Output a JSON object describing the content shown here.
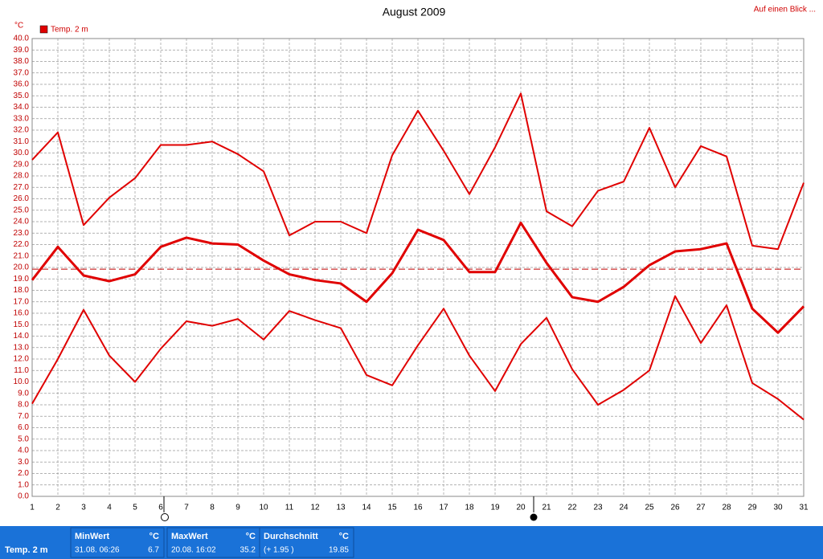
{
  "chart_data": {
    "type": "line",
    "title": "August 2009",
    "link": "Auf einen Blick ...",
    "legend": "Temp. 2 m",
    "y_unit": "°C",
    "x": [
      1,
      2,
      3,
      4,
      5,
      6,
      7,
      8,
      9,
      10,
      11,
      12,
      13,
      14,
      15,
      16,
      17,
      18,
      19,
      20,
      21,
      22,
      23,
      24,
      25,
      26,
      27,
      28,
      29,
      30,
      31
    ],
    "xlim": [
      1,
      31
    ],
    "xticks": [
      1,
      2,
      3,
      4,
      5,
      6,
      7,
      8,
      9,
      10,
      11,
      12,
      13,
      14,
      15,
      16,
      17,
      18,
      19,
      20,
      21,
      22,
      23,
      24,
      25,
      26,
      27,
      28,
      29,
      30,
      31
    ],
    "ylim": [
      0,
      40
    ],
    "yticks": [
      {
        "value": 0,
        "label": "0.0"
      },
      {
        "value": 1,
        "label": "1.0"
      },
      {
        "value": 2,
        "label": "2.0"
      },
      {
        "value": 3,
        "label": "3.0"
      },
      {
        "value": 4,
        "label": "4.0"
      },
      {
        "value": 5,
        "label": "5.0"
      },
      {
        "value": 6,
        "label": "6.0"
      },
      {
        "value": 7,
        "label": "7.0"
      },
      {
        "value": 8,
        "label": "8.0"
      },
      {
        "value": 9,
        "label": "9.0"
      },
      {
        "value": 10,
        "label": "10.0"
      },
      {
        "value": 11,
        "label": "11.0"
      },
      {
        "value": 12,
        "label": "12.0"
      },
      {
        "value": 13,
        "label": "13.0"
      },
      {
        "value": 14,
        "label": "14.0"
      },
      {
        "value": 15,
        "label": "15.0"
      },
      {
        "value": 16,
        "label": "16.0"
      },
      {
        "value": 17,
        "label": "17.0"
      },
      {
        "value": 18,
        "label": "18.0"
      },
      {
        "value": 19,
        "label": "19.0"
      },
      {
        "value": 20,
        "label": "20.0"
      },
      {
        "value": 21,
        "label": "21.0"
      },
      {
        "value": 22,
        "label": "22.0"
      },
      {
        "value": 23,
        "label": "23.0"
      },
      {
        "value": 24,
        "label": "24.0"
      },
      {
        "value": 25,
        "label": "25.0"
      },
      {
        "value": 26,
        "label": "26.0"
      },
      {
        "value": 27,
        "label": "27.0"
      },
      {
        "value": 28,
        "label": "28.0"
      },
      {
        "value": 29,
        "label": "29.0"
      },
      {
        "value": 30,
        "label": "30.0"
      },
      {
        "value": 31,
        "label": "31.0"
      },
      {
        "value": 32,
        "label": "32.0"
      },
      {
        "value": 33,
        "label": "33.0"
      },
      {
        "value": 34,
        "label": "34.0"
      },
      {
        "value": 35,
        "label": "35.0"
      },
      {
        "value": 36,
        "label": "36.0"
      },
      {
        "value": 37,
        "label": "37.0"
      },
      {
        "value": 38,
        "label": "38.0"
      },
      {
        "value": 39,
        "label": "39.0"
      },
      {
        "value": 40,
        "label": "40.0"
      }
    ],
    "grid": true,
    "reference_line": 19.85,
    "series": [
      {
        "color": "#e00000",
        "width": 2,
        "values": [
          29.4,
          31.8,
          23.7,
          26.1,
          27.8,
          30.7,
          30.7,
          31.0,
          29.9,
          28.4,
          22.8,
          24.0,
          24.0,
          23.0,
          29.8,
          33.7,
          30.2,
          26.4,
          30.5,
          35.2,
          24.9,
          23.6,
          26.7,
          27.5,
          32.2,
          27.0,
          30.6,
          29.7,
          21.9,
          21.6,
          27.4
        ]
      },
      {
        "color": "#e00000",
        "width": 3,
        "values": [
          18.9,
          21.8,
          19.3,
          18.8,
          19.4,
          21.8,
          22.6,
          22.1,
          22.0,
          20.6,
          19.4,
          18.9,
          18.6,
          17.0,
          19.5,
          23.3,
          22.4,
          19.6,
          19.6,
          23.9,
          20.4,
          17.4,
          17.0,
          18.3,
          20.2,
          21.4,
          21.6,
          22.1,
          16.4,
          14.3,
          16.6
        ]
      },
      {
        "color": "#e00000",
        "width": 2,
        "values": [
          8.1,
          12.0,
          16.3,
          12.3,
          10.0,
          12.9,
          15.3,
          14.9,
          15.5,
          13.7,
          16.2,
          15.4,
          14.7,
          10.6,
          9.7,
          13.2,
          16.4,
          12.3,
          9.2,
          13.3,
          15.6,
          11.1,
          8.0,
          9.3,
          11.0,
          17.5,
          13.4,
          16.7,
          9.9,
          8.5,
          6.7
        ]
      }
    ]
  },
  "footer": {
    "name": "Temp. 2 m",
    "boxes": [
      {
        "head": "MinWert",
        "unit": "°C",
        "when": "31.08. 06:26",
        "value": "6.7"
      },
      {
        "head": "MaxWert",
        "unit": "°C",
        "when": "20.08. 16:02",
        "value": "35.2"
      },
      {
        "head": "Durchschnitt",
        "unit": "°C",
        "when": "(+ 1.95 )",
        "value": "19.85"
      }
    ]
  }
}
